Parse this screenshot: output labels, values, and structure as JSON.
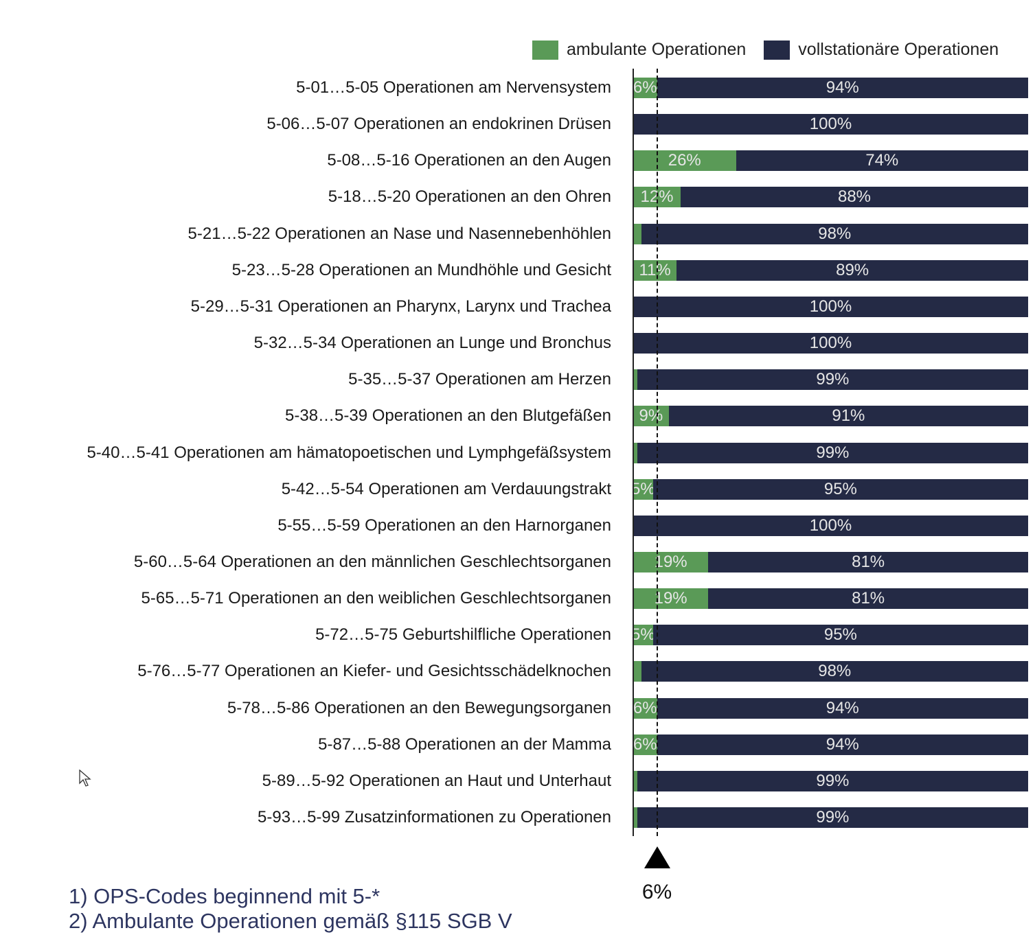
{
  "legend": {
    "ambulant": "ambulante Operationen",
    "stationaer": "vollstationäre Operationen"
  },
  "colors": {
    "ambulant": "#5a9a57",
    "stationaer": "#242a45"
  },
  "reference": {
    "value": 6,
    "label": "6%"
  },
  "footnotes": [
    "1)  OPS-Codes beginnend mit 5-*",
    "2)  Ambulante Operationen gemäß §115 SGB V"
  ],
  "chart_data": {
    "type": "bar",
    "orientation": "horizontal",
    "stacked": "percent",
    "xlim": [
      0,
      100
    ],
    "categories": [
      "5-01…5-05 Operationen am Nervensystem",
      "5-06…5-07 Operationen an endokrinen Drüsen",
      "5-08…5-16 Operationen an den Augen",
      "5-18…5-20 Operationen an den Ohren",
      "5-21…5-22 Operationen an Nase und Nasennebenhöhlen",
      "5-23…5-28 Operationen an Mundhöhle und Gesicht",
      "5-29…5-31 Operationen an Pharynx, Larynx und Trachea",
      "5-32…5-34 Operationen an Lunge und Bronchus",
      "5-35…5-37 Operationen am Herzen",
      "5-38…5-39 Operationen an den Blutgefäßen",
      "5-40…5-41 Operationen am hämatopoetischen und Lymphgefäßsystem",
      "5-42…5-54 Operationen am Verdauungstrakt",
      "5-55…5-59 Operationen an den Harnorganen",
      "5-60…5-64 Operationen an den männlichen Geschlechtsorganen",
      "5-65…5-71 Operationen an den weiblichen Geschlechtsorganen",
      "5-72…5-75 Geburtshilfliche Operationen",
      "5-76…5-77 Operationen an Kiefer- und Gesichtsschädelknochen",
      "5-78…5-86 Operationen an den Bewegungsorganen",
      "5-87…5-88 Operationen an der Mamma",
      "5-89…5-92 Operationen an Haut und Unterhaut",
      "5-93…5-99 Zusatzinformationen zu Operationen"
    ],
    "series": [
      {
        "name": "ambulante Operationen",
        "values": [
          6,
          0,
          26,
          12,
          2,
          11,
          0,
          0,
          1,
          9,
          1,
          5,
          0,
          19,
          19,
          5,
          2,
          6,
          6,
          1,
          1
        ],
        "labels": [
          "6%",
          "",
          "26%",
          "12%",
          "",
          "11%",
          "",
          "",
          "",
          "9%",
          "",
          "5%",
          "",
          "19%",
          "19%",
          "5%",
          "",
          "6%",
          "6%",
          "",
          ""
        ]
      },
      {
        "name": "vollstationäre Operationen",
        "values": [
          94,
          100,
          74,
          88,
          98,
          89,
          100,
          100,
          99,
          91,
          99,
          95,
          100,
          81,
          81,
          95,
          98,
          94,
          94,
          99,
          99
        ],
        "labels": [
          "94%",
          "100%",
          "74%",
          "88%",
          "98%",
          "89%",
          "100%",
          "100%",
          "99%",
          "91%",
          "99%",
          "95%",
          "100%",
          "81%",
          "81%",
          "95%",
          "98%",
          "94%",
          "94%",
          "99%",
          "99%"
        ]
      }
    ],
    "legend_position": "top-right"
  }
}
